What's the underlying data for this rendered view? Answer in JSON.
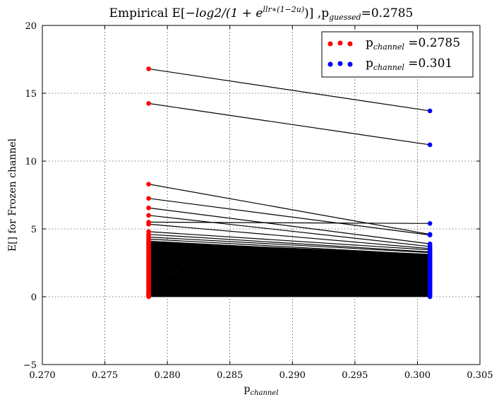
{
  "chart_data": {
    "type": "scatter",
    "title": {
      "prefix": "Empirical E[",
      "expr_main": "−log2/(1 + e",
      "expr_sup": "llr∗(1−2u)",
      "expr_end": ")]",
      "suffix_pre": " ,p",
      "suffix_sub": "guessed",
      "suffix_post": "=0.2785"
    },
    "xlabel": {
      "main": "p",
      "sub": "channel"
    },
    "ylabel": "E[] for Frozen channel",
    "xlim": [
      0.27,
      0.305
    ],
    "ylim": [
      -5,
      20
    ],
    "x_ticks": [
      "0.270",
      "0.275",
      "0.280",
      "0.285",
      "0.290",
      "0.295",
      "0.300",
      "0.305"
    ],
    "y_ticks": [
      "−5",
      "0",
      "5",
      "10",
      "15",
      "20"
    ],
    "x_tick_values": [
      0.27,
      0.275,
      0.28,
      0.285,
      0.29,
      0.295,
      0.3,
      0.305
    ],
    "y_tick_values": [
      -5,
      0,
      5,
      10,
      15,
      20
    ],
    "grid": true,
    "legend_position": "top-right",
    "series": [
      {
        "name_main": "p",
        "name_sub": "channel",
        "name_post": " =0.2785",
        "x": 0.2785,
        "color": "#ff0000"
      },
      {
        "name_main": "p",
        "name_sub": "channel",
        "name_post": " =0.301",
        "x": 0.301,
        "color": "#0000ff"
      }
    ],
    "connector_color": "#000000",
    "pairs": [
      [
        16.8,
        13.7
      ],
      [
        14.25,
        11.2
      ],
      [
        8.3,
        4.6
      ],
      [
        7.25,
        4.55
      ],
      [
        6.55,
        3.9
      ],
      [
        6.0,
        3.7
      ],
      [
        5.5,
        5.4
      ],
      [
        5.35,
        3.55
      ],
      [
        4.8,
        3.45
      ],
      [
        4.6,
        3.3
      ],
      [
        4.4,
        3.25
      ],
      [
        4.25,
        3.1
      ],
      [
        4.1,
        3.0
      ],
      [
        3.95,
        2.9
      ],
      [
        3.8,
        2.75
      ],
      [
        3.65,
        2.6
      ],
      [
        3.5,
        2.5
      ],
      [
        3.35,
        2.4
      ],
      [
        3.2,
        2.3
      ],
      [
        3.05,
        2.2
      ],
      [
        2.9,
        2.1
      ],
      [
        2.75,
        2.0
      ],
      [
        2.6,
        1.9
      ],
      [
        2.45,
        1.8
      ],
      [
        2.3,
        1.7
      ],
      [
        2.15,
        1.6
      ],
      [
        2.0,
        1.5
      ],
      [
        1.85,
        1.4
      ],
      [
        1.7,
        1.3
      ],
      [
        1.55,
        1.2
      ],
      [
        1.4,
        1.1
      ],
      [
        1.25,
        1.0
      ],
      [
        1.1,
        0.9
      ],
      [
        0.95,
        0.8
      ],
      [
        0.8,
        0.7
      ],
      [
        0.65,
        0.6
      ],
      [
        0.5,
        0.5
      ],
      [
        0.35,
        0.4
      ],
      [
        0.2,
        0.3
      ],
      [
        0.05,
        0.2
      ],
      [
        3.6,
        3.0
      ],
      [
        3.0,
        2.7
      ],
      [
        2.5,
        2.3
      ],
      [
        2.0,
        1.9
      ],
      [
        1.5,
        1.6
      ],
      [
        1.0,
        1.2
      ],
      [
        0.7,
        0.9
      ],
      [
        0.4,
        0.6
      ],
      [
        0.25,
        0.35
      ],
      [
        0.1,
        0.15
      ]
    ]
  }
}
